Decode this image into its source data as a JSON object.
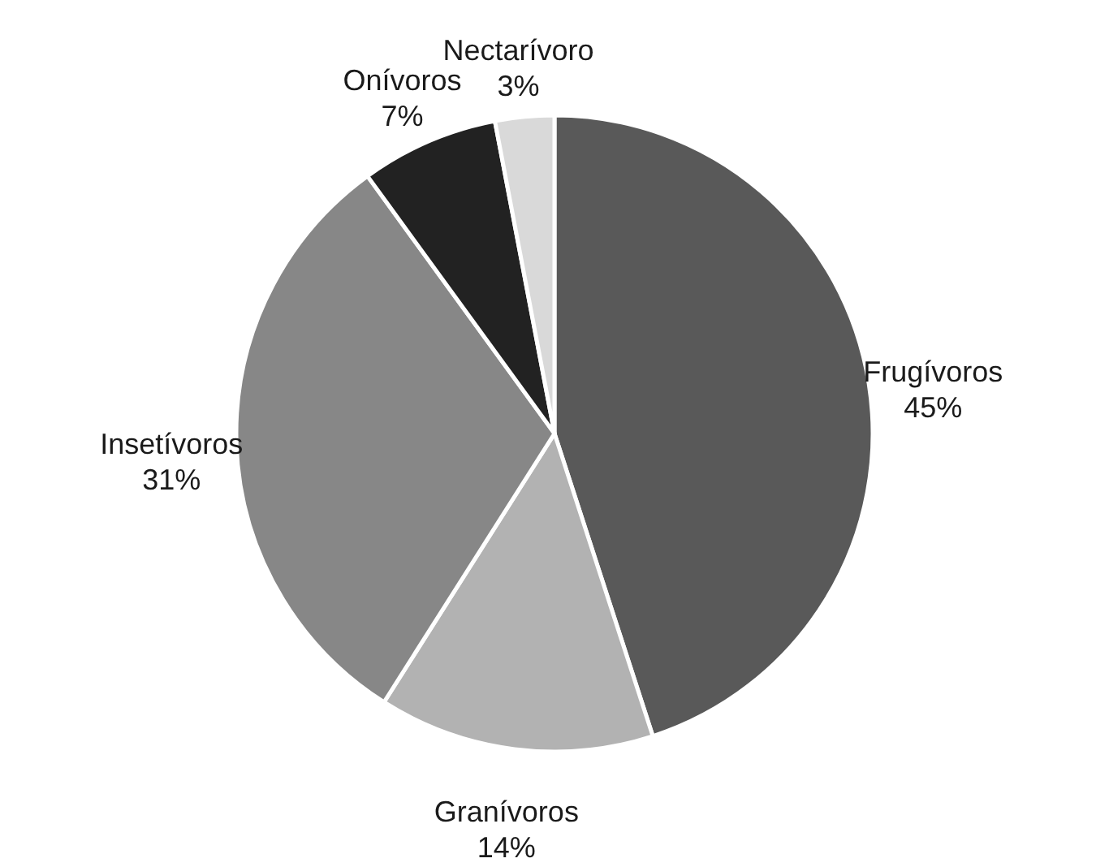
{
  "chart_data": {
    "type": "pie",
    "categories": [
      "Frugívoros",
      "Granívoros",
      "Insetívoros",
      "Onívoros",
      "Nectarívoro"
    ],
    "values": [
      45,
      14,
      31,
      7,
      3
    ],
    "value_labels": [
      "45%",
      "14%",
      "31%",
      "7%",
      "3%"
    ],
    "colors": [
      "#595959",
      "#b2b2b2",
      "#878787",
      "#222222",
      "#d9d9d9"
    ]
  }
}
